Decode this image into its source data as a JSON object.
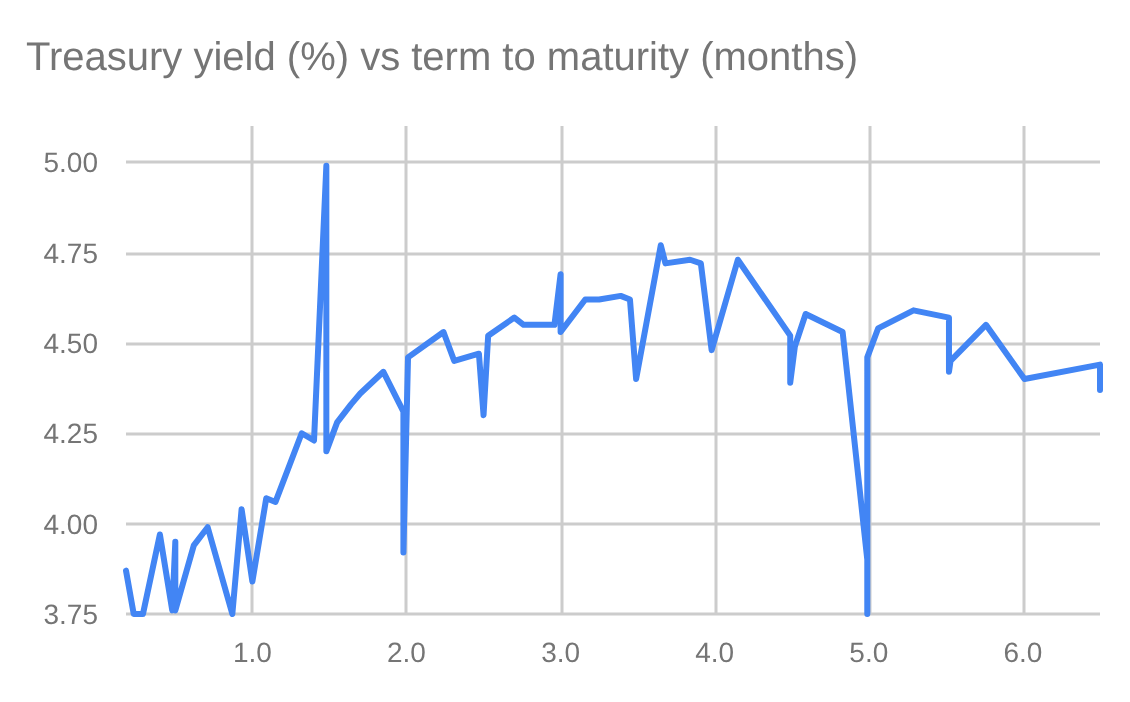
{
  "chart_data": {
    "type": "line",
    "title": "Treasury yield (%) vs term to maturity (months)",
    "x": [
      0.18,
      0.23,
      0.29,
      0.4,
      0.48,
      0.5,
      0.5,
      0.62,
      0.71,
      0.87,
      0.93,
      1.0,
      1.09,
      1.15,
      1.32,
      1.4,
      1.48,
      1.48,
      1.55,
      1.64,
      1.7,
      1.85,
      1.98,
      1.98,
      2.01,
      2.24,
      2.31,
      2.47,
      2.5,
      2.53,
      2.7,
      2.76,
      2.96,
      3.0,
      3.0,
      3.16,
      3.25,
      3.39,
      3.45,
      3.49,
      3.65,
      3.68,
      3.84,
      3.91,
      3.98,
      4.15,
      4.49,
      4.49,
      4.52,
      4.59,
      4.83,
      4.99,
      4.99,
      4.99,
      5.06,
      5.29,
      5.52,
      5.52,
      5.53,
      5.76,
      6.01,
      6.5,
      6.5
    ],
    "series": [
      {
        "color": "#4285f4",
        "values": [
          3.87,
          3.75,
          3.75,
          3.97,
          3.76,
          3.95,
          3.76,
          3.94,
          3.99,
          3.75,
          4.04,
          3.84,
          4.07,
          4.06,
          4.25,
          4.23,
          4.99,
          4.2,
          4.28,
          4.33,
          4.36,
          4.42,
          4.31,
          3.92,
          4.46,
          4.53,
          4.45,
          4.47,
          4.3,
          4.52,
          4.57,
          4.55,
          4.55,
          4.69,
          4.53,
          4.62,
          4.62,
          4.63,
          4.62,
          4.4,
          4.77,
          4.72,
          4.73,
          4.72,
          4.48,
          4.73,
          4.52,
          4.39,
          4.49,
          4.58,
          4.53,
          3.9,
          3.75,
          4.46,
          4.54,
          4.59,
          4.57,
          4.42,
          4.45,
          4.55,
          4.4,
          4.44,
          4.37
        ]
      }
    ],
    "xlim": [
      0.18,
      6.5
    ],
    "ylim": [
      3.75,
      5.1
    ],
    "xticks": [
      {
        "value": 1,
        "label": "1.0"
      },
      {
        "value": 2,
        "label": "2.0"
      },
      {
        "value": 3,
        "label": "3.0"
      },
      {
        "value": 4,
        "label": "4.0"
      },
      {
        "value": 5,
        "label": "5.0"
      },
      {
        "value": 6,
        "label": "6.0"
      }
    ],
    "yticks": [
      {
        "value": 3.75,
        "label": "3.75"
      },
      {
        "value": 4,
        "label": "4.00"
      },
      {
        "value": 4.25,
        "label": "4.25"
      },
      {
        "value": 4.5,
        "label": "4.50"
      },
      {
        "value": 4.75,
        "label": "4.75"
      },
      {
        "value": 5,
        "label": "5.00"
      }
    ],
    "grid": true,
    "marker": "none",
    "line_style": "solid"
  }
}
